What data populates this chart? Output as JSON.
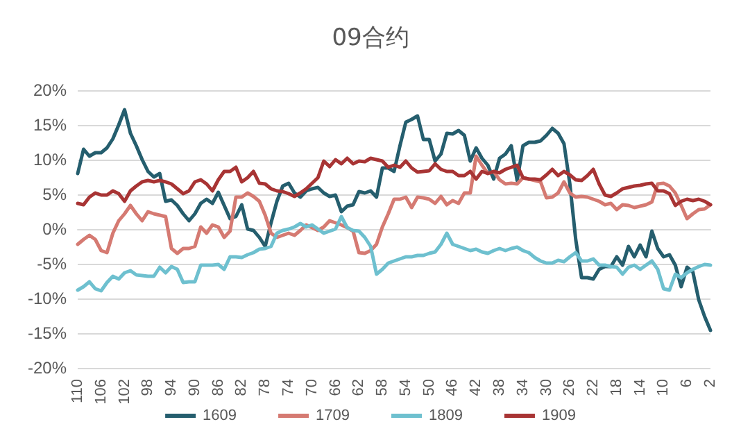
{
  "chart_data": {
    "type": "line",
    "title": "09合约",
    "categories": [
      "110",
      null,
      null,
      null,
      "106",
      null,
      null,
      null,
      "102",
      null,
      null,
      null,
      "98",
      null,
      null,
      null,
      "94",
      null,
      null,
      null,
      "90",
      null,
      null,
      null,
      "86",
      null,
      null,
      null,
      "82",
      null,
      null,
      null,
      "78",
      null,
      null,
      null,
      "74",
      null,
      null,
      null,
      "70",
      null,
      null,
      null,
      "66",
      null,
      null,
      null,
      "62",
      null,
      null,
      null,
      "58",
      null,
      null,
      null,
      "54",
      null,
      null,
      null,
      "50",
      null,
      null,
      null,
      "46",
      null,
      null,
      null,
      "42",
      null,
      null,
      null,
      "38",
      null,
      null,
      null,
      "34",
      null,
      null,
      null,
      "30",
      null,
      null,
      null,
      "26",
      null,
      null,
      null,
      "22",
      null,
      null,
      null,
      "18",
      null,
      null,
      null,
      "14",
      null,
      null,
      null,
      "10",
      null,
      null,
      null,
      "6",
      null,
      null,
      null,
      "2"
    ],
    "series": [
      {
        "name": "1609",
        "color": "#255e6e",
        "values": [
          8,
          11.5,
          10.5,
          11,
          11,
          11.7,
          13,
          15,
          17.2,
          13.8,
          12,
          10,
          8.3,
          7.5,
          8,
          4,
          4.2,
          3.4,
          2.2,
          1.2,
          2.2,
          3.7,
          4.3,
          3.7,
          5.3,
          3.4,
          1.5,
          1.8,
          3.5,
          0,
          -0.2,
          -1.2,
          -2.5,
          0.9,
          4,
          6.2,
          6.6,
          5.2,
          4.6,
          5.5,
          5.8,
          6,
          5.2,
          4.7,
          4.9,
          2.5,
          3.3,
          3.5,
          5.4,
          5.2,
          5.5,
          4.6,
          8.8,
          8.8,
          8.3,
          12,
          15.4,
          15.8,
          16.3,
          12.9,
          12.9,
          9.8,
          10.8,
          13.8,
          13.7,
          14.2,
          13.5,
          9.8,
          11.7,
          10.2,
          9.2,
          7.2,
          10.2,
          10.8,
          12,
          7,
          12,
          12.5,
          12.5,
          12.7,
          13.5,
          14.5,
          13.8,
          12.3,
          6.5,
          -1.5,
          -7,
          -7,
          -7.2,
          -5.8,
          -5.4,
          -5.4,
          -4,
          -5.2,
          -2.5,
          -4,
          -2.3,
          -4,
          -0.3,
          -2.8,
          -4,
          -3.7,
          -5.2,
          -8.3,
          -5.5,
          -6.2,
          -10.2,
          -12.6,
          -14.6
        ]
      },
      {
        "name": "1709",
        "color": "#d57a72",
        "values": [
          -2.2,
          -1.5,
          -0.9,
          -1.5,
          -3.1,
          -3.4,
          -0.6,
          1.2,
          2.2,
          3.4,
          2.2,
          1.2,
          2.5,
          2.2,
          2,
          1.8,
          -2.8,
          -3.5,
          -2.8,
          -2.8,
          -2.5,
          0.3,
          -0.6,
          0.6,
          0.3,
          -1.2,
          -0.3,
          4.6,
          4.6,
          5.2,
          4.7,
          4,
          2,
          -0.6,
          -1.2,
          -0.9,
          -0.6,
          -0.9,
          -0.2,
          0.6,
          0.2,
          -0.2,
          0.3,
          1.2,
          0.9,
          0.6,
          0.2,
          -0.3,
          -3.4,
          -3.5,
          -3.1,
          -2.2,
          0.3,
          2.2,
          4.3,
          4.3,
          4.6,
          3.1,
          4.6,
          4.5,
          4.3,
          3.7,
          4.7,
          3.5,
          4.1,
          3.7,
          5.2,
          5.2,
          10.5,
          9.2,
          8,
          8.3,
          7.1,
          6.5,
          6.6,
          6.5,
          7.4,
          7.2,
          7,
          6.8,
          4.5,
          4.6,
          5.2,
          6.8,
          5.2,
          4.6,
          4.7,
          4.6,
          4.3,
          4,
          3.5,
          3.7,
          2.8,
          3.5,
          3.4,
          3.1,
          3.3,
          3.5,
          3.9,
          6.5,
          6.6,
          6.2,
          5.2,
          3.4,
          1.5,
          2.2,
          2.8,
          2.9,
          3.5
        ]
      },
      {
        "name": "1809",
        "color": "#6ec0cf",
        "values": [
          -8.8,
          -8.3,
          -7.6,
          -8.6,
          -8.9,
          -7.7,
          -6.8,
          -7.2,
          -6.3,
          -6,
          -6.6,
          -6.7,
          -6.8,
          -6.8,
          -5.5,
          -6.3,
          -5.4,
          -5.8,
          -7.7,
          -7.6,
          -7.6,
          -5.2,
          -5.2,
          -5.2,
          -5.1,
          -5.8,
          -4,
          -4,
          -4.1,
          -3.7,
          -3.4,
          -2.9,
          -2.8,
          -2.5,
          -0.6,
          -0.2,
          0,
          0.3,
          0.8,
          0.3,
          0.6,
          0,
          -0.6,
          -0.3,
          0,
          1.8,
          0.2,
          -0.2,
          -0.3,
          -1.2,
          -2.5,
          -6.5,
          -5.8,
          -4.9,
          -4.6,
          -4.3,
          -4,
          -4,
          -3.8,
          -3.8,
          -3.5,
          -3.3,
          -2.2,
          -0.6,
          -2.2,
          -2.5,
          -2.8,
          -3.1,
          -2.9,
          -3.3,
          -3.5,
          -3.1,
          -2.8,
          -3.1,
          -2.8,
          -2.6,
          -3.1,
          -3.4,
          -4.1,
          -4.6,
          -4.9,
          -4.9,
          -4.5,
          -4.7,
          -4,
          -3.4,
          -4.6,
          -4.6,
          -4.3,
          -5.2,
          -5.2,
          -5.4,
          -5.5,
          -6.5,
          -5.5,
          -5.2,
          -5.8,
          -5.2,
          -4.6,
          -5.8,
          -8.6,
          -8.8,
          -6.5,
          -7,
          -6.3,
          -5.8,
          -5.4,
          -5.1,
          -5.2
        ]
      },
      {
        "name": "1909",
        "color": "#a83434",
        "values": [
          3.7,
          3.5,
          4.6,
          5.2,
          4.9,
          4.9,
          5.5,
          5.1,
          4,
          5.5,
          6.2,
          6.8,
          7,
          6.8,
          7,
          6.8,
          6.5,
          5.8,
          5.1,
          5.5,
          6.8,
          7.1,
          6.5,
          5.5,
          7.1,
          8.3,
          8.3,
          8.9,
          6.8,
          7.4,
          8.3,
          6.6,
          6.5,
          5.8,
          5.5,
          5.4,
          5.1,
          4.7,
          5.2,
          5.8,
          6.6,
          7.4,
          9.8,
          9,
          10,
          9.4,
          10.2,
          9.4,
          9.8,
          9.7,
          10.2,
          10,
          9.8,
          8.9,
          9.2,
          8.9,
          9.8,
          8.8,
          8.2,
          8.3,
          8.4,
          9.4,
          8.6,
          8.3,
          8.3,
          7.7,
          7.7,
          8.3,
          7.2,
          8.3,
          8,
          8.3,
          8.1,
          8.6,
          8.9,
          9.2,
          7.4,
          7.2,
          7.2,
          7.1,
          7.8,
          8.6,
          7.7,
          8.3,
          7.8,
          7.1,
          7,
          7.7,
          8.6,
          6.5,
          4.9,
          4.7,
          5.2,
          5.8,
          6,
          6.2,
          6.3,
          6.5,
          6.6,
          5.5,
          5.5,
          5.1,
          3.4,
          4,
          4.3,
          4.1,
          4.3,
          4,
          3.5
        ]
      }
    ],
    "ylim": [
      -20,
      20
    ],
    "yticks": [
      {
        "value": -20,
        "label": "-20%"
      },
      {
        "value": -15,
        "label": "-15%"
      },
      {
        "value": -10,
        "label": "-10%"
      },
      {
        "value": -5,
        "label": "-5%"
      },
      {
        "value": 0,
        "label": "0%"
      },
      {
        "value": 5,
        "label": "5%"
      },
      {
        "value": 10,
        "label": "10%"
      },
      {
        "value": 15,
        "label": "15%"
      },
      {
        "value": 20,
        "label": "20%"
      }
    ],
    "grid": "y",
    "legend": "bottom",
    "marker": "none",
    "line_style": "solid"
  }
}
